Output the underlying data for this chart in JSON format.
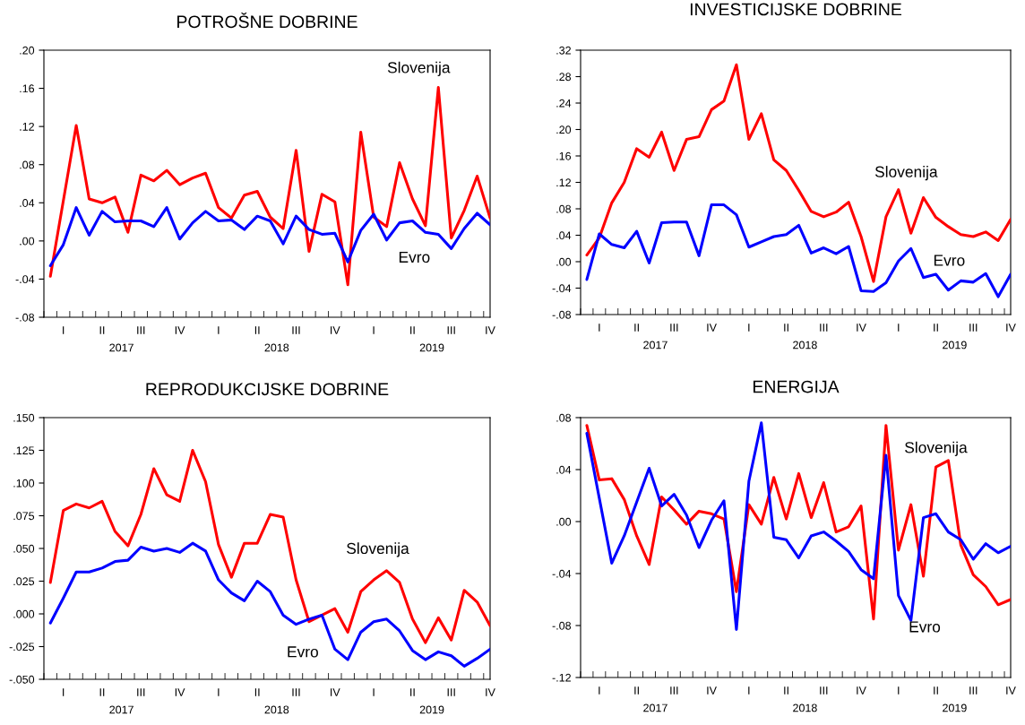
{
  "chart_data": [
    {
      "type": "line",
      "title": "POTROŠNE DOBRINE",
      "categories": [
        null,
        "I",
        null,
        null,
        "II",
        null,
        null,
        "III",
        null,
        null,
        "IV",
        null,
        null,
        "I",
        null,
        null,
        "II",
        null,
        null,
        "III",
        null,
        null,
        "IV",
        null,
        null,
        "I",
        null,
        null,
        "II",
        null,
        null,
        "III",
        null,
        null,
        "IV"
      ],
      "series": [
        {
          "name": "Slovenija",
          "color": "#ff0000",
          "values": [
            -0.037,
            0.042,
            0.121,
            0.044,
            0.04,
            0.046,
            0.009,
            0.069,
            0.063,
            0.074,
            0.059,
            0.066,
            0.071,
            0.035,
            0.024,
            0.048,
            0.052,
            0.025,
            0.013,
            0.095,
            -0.011,
            0.049,
            0.041,
            -0.046,
            0.114,
            0.025,
            0.015,
            0.082,
            0.044,
            0.016,
            0.161,
            0.003,
            0.032,
            0.068,
            0.024
          ]
        },
        {
          "name": "Evro",
          "color": "#0000ff",
          "values": [
            -0.026,
            -0.004,
            0.035,
            0.006,
            0.031,
            0.02,
            0.021,
            0.021,
            0.015,
            0.035,
            0.002,
            0.019,
            0.031,
            0.021,
            0.022,
            0.012,
            0.026,
            0.021,
            -0.003,
            0.026,
            0.012,
            0.007,
            0.008,
            -0.022,
            0.011,
            0.028,
            0.001,
            0.019,
            0.021,
            0.009,
            0.007,
            -0.008,
            0.013,
            0.029,
            0.017
          ]
        }
      ],
      "ylim": [
        -0.08,
        0.2
      ],
      "yticks": [
        {
          "value": -0.08,
          "label": "-.08"
        },
        {
          "value": -0.04,
          "label": "-.04"
        },
        {
          "value": 0,
          "label": ".00"
        },
        {
          "value": 0.04,
          "label": ".04"
        },
        {
          "value": 0.08,
          "label": ".08"
        },
        {
          "value": 0.12,
          "label": ".12"
        },
        {
          "value": 0.16,
          "label": ".16"
        },
        {
          "value": 0.2,
          "label": ".20"
        }
      ],
      "annotations": [
        "2017",
        "2018",
        "2019"
      ]
    },
    {
      "type": "line",
      "title": "INVESTICIJSKE DOBRINE",
      "categories": [
        null,
        "I",
        null,
        null,
        "II",
        null,
        null,
        "III",
        null,
        null,
        "IV",
        null,
        null,
        "I",
        null,
        null,
        "II",
        null,
        null,
        "III",
        null,
        null,
        "IV",
        null,
        null,
        "I",
        null,
        null,
        "II",
        null,
        null,
        "III",
        null,
        null,
        "IV"
      ],
      "series": [
        {
          "name": "Slovenija",
          "color": "#ff0000",
          "values": [
            0.01,
            0.036,
            0.089,
            0.12,
            0.171,
            0.158,
            0.196,
            0.138,
            0.185,
            0.189,
            0.23,
            0.243,
            0.298,
            0.185,
            0.224,
            0.154,
            0.138,
            0.108,
            0.076,
            0.068,
            0.075,
            0.09,
            0.038,
            -0.03,
            0.068,
            0.109,
            0.043,
            0.097,
            0.067,
            0.053,
            0.041,
            0.038,
            0.045,
            0.032,
            0.064
          ]
        },
        {
          "name": "Evro",
          "color": "#0000ff",
          "values": [
            -0.027,
            0.042,
            0.026,
            0.021,
            0.046,
            -0.002,
            0.059,
            0.06,
            0.06,
            0.009,
            0.086,
            0.086,
            0.071,
            0.022,
            0.03,
            0.038,
            0.041,
            0.055,
            0.013,
            0.021,
            0.012,
            0.023,
            -0.044,
            -0.045,
            -0.032,
            0.001,
            0.02,
            -0.024,
            -0.019,
            -0.043,
            -0.029,
            -0.031,
            -0.018,
            -0.053,
            -0.019
          ]
        }
      ],
      "ylim": [
        -0.08,
        0.32
      ],
      "yticks": [
        {
          "value": -0.08,
          "label": "-.08"
        },
        {
          "value": -0.04,
          "label": "-.04"
        },
        {
          "value": 0,
          "label": ".00"
        },
        {
          "value": 0.04,
          "label": ".04"
        },
        {
          "value": 0.08,
          "label": ".08"
        },
        {
          "value": 0.12,
          "label": ".12"
        },
        {
          "value": 0.16,
          "label": ".16"
        },
        {
          "value": 0.2,
          "label": ".20"
        },
        {
          "value": 0.24,
          "label": ".24"
        },
        {
          "value": 0.28,
          "label": ".28"
        },
        {
          "value": 0.32,
          "label": ".32"
        }
      ],
      "annotations": [
        "2017",
        "2018",
        "2019"
      ]
    },
    {
      "type": "line",
      "title": "REPRODUKCIJSKE DOBRINE",
      "categories": [
        null,
        "I",
        null,
        null,
        "II",
        null,
        null,
        "III",
        null,
        null,
        "IV",
        null,
        null,
        "I",
        null,
        null,
        "II",
        null,
        null,
        "III",
        null,
        null,
        "IV",
        null,
        null,
        "I",
        null,
        null,
        "II",
        null,
        null,
        "III",
        null,
        null,
        "IV"
      ],
      "series": [
        {
          "name": "Slovenija",
          "color": "#ff0000",
          "values": [
            0.024,
            0.079,
            0.084,
            0.081,
            0.086,
            0.063,
            0.052,
            0.076,
            0.111,
            0.091,
            0.086,
            0.125,
            0.101,
            0.053,
            0.028,
            0.054,
            0.054,
            0.076,
            0.074,
            0.026,
            -0.006,
            -0.001,
            0.004,
            -0.014,
            0.017,
            0.026,
            0.033,
            0.024,
            -0.004,
            -0.022,
            -0.003,
            -0.02,
            0.018,
            0.009,
            -0.009
          ]
        },
        {
          "name": "Evro",
          "color": "#0000ff",
          "values": [
            -0.007,
            0.012,
            0.032,
            0.032,
            0.035,
            0.04,
            0.041,
            0.051,
            0.048,
            0.05,
            0.047,
            0.054,
            0.048,
            0.026,
            0.016,
            0.01,
            0.025,
            0.017,
            -0.001,
            -0.008,
            -0.004,
            -0.001,
            -0.027,
            -0.035,
            -0.014,
            -0.006,
            -0.004,
            -0.013,
            -0.028,
            -0.035,
            -0.029,
            -0.032,
            -0.04,
            -0.034,
            -0.027
          ]
        }
      ],
      "ylim": [
        -0.05,
        0.15
      ],
      "yticks": [
        {
          "value": -0.05,
          "label": "-.050"
        },
        {
          "value": -0.025,
          "label": "-.025"
        },
        {
          "value": 0,
          "label": ".000"
        },
        {
          "value": 0.025,
          "label": ".025"
        },
        {
          "value": 0.05,
          "label": ".050"
        },
        {
          "value": 0.075,
          "label": ".075"
        },
        {
          "value": 0.1,
          "label": ".100"
        },
        {
          "value": 0.125,
          "label": ".125"
        },
        {
          "value": 0.15,
          "label": ".150"
        }
      ],
      "annotations": [
        "2017",
        "2018",
        "2019"
      ]
    },
    {
      "type": "line",
      "title": "ENERGIJA",
      "categories": [
        null,
        "I",
        null,
        null,
        "II",
        null,
        null,
        "III",
        null,
        null,
        "IV",
        null,
        null,
        "I",
        null,
        null,
        "II",
        null,
        null,
        "III",
        null,
        null,
        "IV",
        null,
        null,
        "I",
        null,
        null,
        "II",
        null,
        null,
        "III",
        null,
        null,
        "IV"
      ],
      "series": [
        {
          "name": "Slovenija",
          "color": "#ff0000",
          "values": [
            0.074,
            0.032,
            0.033,
            0.017,
            -0.011,
            -0.033,
            0.019,
            0.009,
            -0.002,
            0.008,
            0.006,
            0.002,
            -0.054,
            0.013,
            -0.002,
            0.034,
            0.002,
            0.037,
            0.003,
            0.03,
            -0.008,
            -0.004,
            0.012,
            -0.075,
            0.074,
            -0.022,
            0.013,
            -0.042,
            0.042,
            0.047,
            -0.018,
            -0.041,
            -0.05,
            -0.064,
            -0.06
          ]
        },
        {
          "name": "Evro",
          "color": "#0000ff",
          "values": [
            0.068,
            0.018,
            -0.032,
            -0.011,
            0.015,
            0.041,
            0.012,
            0.021,
            0.005,
            -0.02,
            0.001,
            0.016,
            -0.083,
            0.031,
            0.076,
            -0.012,
            -0.014,
            -0.028,
            -0.011,
            -0.008,
            -0.015,
            -0.023,
            -0.037,
            -0.044,
            0.051,
            -0.057,
            -0.076,
            0.003,
            0.006,
            -0.008,
            -0.014,
            -0.029,
            -0.017,
            -0.024,
            -0.019
          ]
        }
      ],
      "ylim": [
        -0.12,
        0.08
      ],
      "yticks": [
        {
          "value": -0.12,
          "label": "-.12"
        },
        {
          "value": -0.08,
          "label": "-.08"
        },
        {
          "value": -0.04,
          "label": "-.04"
        },
        {
          "value": 0,
          "label": ".00"
        },
        {
          "value": 0.04,
          "label": ".04"
        },
        {
          "value": 0.08,
          "label": ".08"
        }
      ],
      "annotations": [
        "2017",
        "2018",
        "2019"
      ]
    }
  ]
}
